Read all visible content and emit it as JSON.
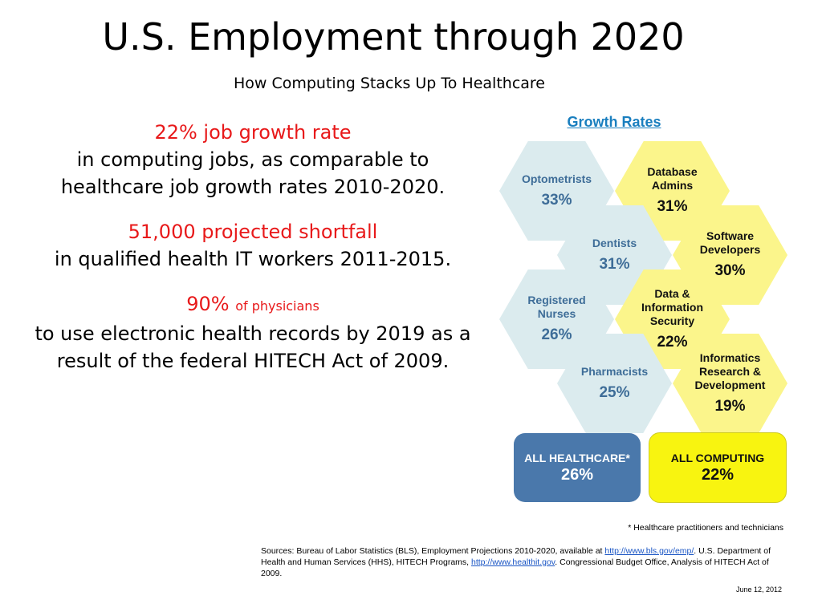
{
  "title": "U.S. Employment through 2020",
  "subtitle": "How Computing Stacks Up To Healthcare",
  "stats": [
    {
      "highlight": "22% job growth rate",
      "highlight_small": "",
      "text": "in computing jobs, as comparable to healthcare job growth rates 2010-2020."
    },
    {
      "highlight": "51,000 projected shortfall",
      "highlight_small": "",
      "text": "in qualified health IT workers 2011-2015."
    },
    {
      "highlight": "90%",
      "highlight_small": "of physicians",
      "text": "to use electronic health records  by 2019 as a result of the federal HITECH Act of 2009."
    }
  ],
  "growth": {
    "title": "Growth Rates",
    "cells": [
      {
        "name": "Optometrists",
        "pct": "33%"
      },
      {
        "name": "Database Admins",
        "pct": "31%"
      },
      {
        "name": "Dentists",
        "pct": "31%"
      },
      {
        "name": "Software Developers",
        "pct": "30%"
      },
      {
        "name": "Registered Nurses",
        "pct": "26%"
      },
      {
        "name": "Data & Information Security",
        "pct": "22%"
      },
      {
        "name": "Pharmacists",
        "pct": "25%"
      },
      {
        "name": "Informatics Research & Development",
        "pct": "19%"
      }
    ],
    "totals": [
      {
        "name": "ALL HEALTHCARE*",
        "pct": "26%"
      },
      {
        "name": "ALL COMPUTING",
        "pct": "22%"
      }
    ]
  },
  "colors": {
    "healthcare_cell": "#dbebee",
    "computing_cell": "#fbf58b",
    "healthcare_total": "#4a78ab",
    "computing_total": "#f8f410",
    "highlight": "#e8191a"
  },
  "footnote": "* Healthcare practitioners and technicians",
  "sources": {
    "part1": "Sources: Bureau of Labor Statistics (BLS), Employment Projections 2010-2020, available at ",
    "link1": "http://www.bls.gov/emp/",
    "part2": ". U.S. Department of Health and Human Services (HHS), HITECH Programs, ",
    "link2": "http://www.healthit.gov",
    "part3": ". Congressional Budget Office, Analysis of HITECH Act of 2009."
  },
  "date": "June 12, 2012"
}
